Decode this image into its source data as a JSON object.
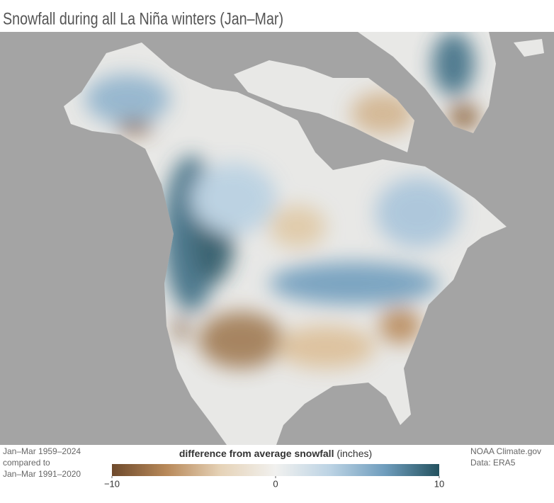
{
  "title": "Snowfall during all La Niña winters (Jan–Mar)",
  "legend": {
    "title": "difference from average snowfall",
    "unit": "(inches)",
    "min": -10,
    "max": 10,
    "ticks": [
      {
        "value": -10,
        "label": "−10"
      },
      0,
      10
    ],
    "colors": [
      "#6e4a2c",
      "#b8895a",
      "#e6d3b8",
      "#f1f1ef",
      "#bcd3e4",
      "#6f9dbd",
      "#24525f"
    ]
  },
  "note": [
    "Jan–Mar 1959–2024",
    "compared to",
    "Jan–Mar 1991–2020"
  ],
  "credit": [
    "NOAA Climate.gov",
    "Data: ERA5"
  ]
}
